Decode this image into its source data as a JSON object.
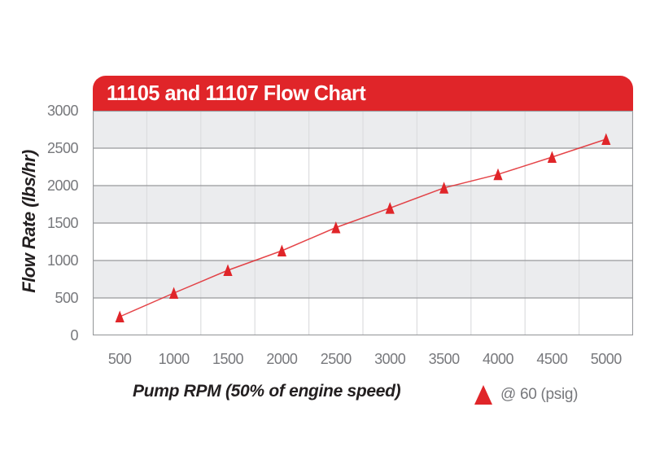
{
  "header": {
    "title": "11105 and 11107 Flow Chart"
  },
  "colors": {
    "red": "#e02529",
    "band_gray": "#ebecee",
    "grid_dark": "#98999c",
    "grid_light": "#dcdddf",
    "tick_text": "#77787c",
    "axis_title_text": "#231f20",
    "title_text": "#ffffff"
  },
  "chart_data": {
    "type": "line",
    "title": "11105 and 11107 Flow Chart",
    "xlabel": "Pump RPM (50% of engine speed)",
    "ylabel": "Flow Rate (lbs/hr)",
    "x": [
      500,
      1000,
      1500,
      2000,
      2500,
      3000,
      3500,
      4000,
      4500,
      5000
    ],
    "xticks": [
      "500",
      "1000",
      "1500",
      "2000",
      "2500",
      "3000",
      "3500",
      "4000",
      "4500",
      "5000"
    ],
    "yticks": [
      "0",
      "500",
      "1000",
      "1500",
      "2000",
      "2500",
      "3000"
    ],
    "ylim": [
      0,
      3000
    ],
    "ytick_step": 500,
    "series": [
      {
        "name": "@ 60 (psig)",
        "marker": "triangle",
        "color": "#e02529",
        "values": [
          250,
          565,
          870,
          1130,
          1440,
          1700,
          1970,
          2150,
          2380,
          2620
        ]
      }
    ],
    "grid": {
      "horizontal": "dark gray line every 500 units",
      "vertical": "light gray line at category boundaries",
      "plot_bands": "alternating gray/white horizontal bands every 500 units, gray at top"
    },
    "legend_position": "bottom-right, below plot"
  },
  "legend": {
    "label": "@ 60 (psig)"
  }
}
